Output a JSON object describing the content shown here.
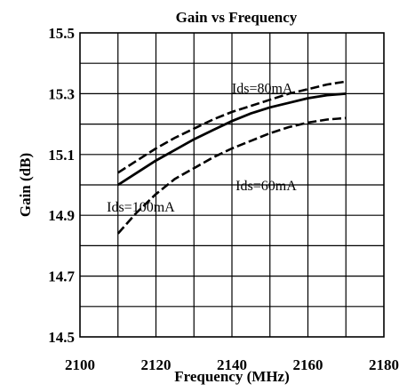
{
  "chart_data": {
    "type": "line",
    "title": "Gain vs Frequency",
    "xlabel": "Frequency (MHz)",
    "ylabel": "Gain (dB)",
    "xlim": [
      2100,
      2180
    ],
    "ylim": [
      14.5,
      15.5
    ],
    "x_ticks": [
      2100,
      2120,
      2140,
      2160,
      2180
    ],
    "y_ticks": [
      14.5,
      14.7,
      14.9,
      15.1,
      15.3,
      15.5
    ],
    "x_tick_labels": [
      "2100",
      "2120",
      "2140",
      "2160",
      "2180"
    ],
    "y_tick_labels": [
      "14.5",
      "14.7",
      "14.9",
      "15.1",
      "15.3",
      "15.5"
    ],
    "grid": true,
    "legend": "none",
    "series": [
      {
        "name": "Ids=80mA",
        "style": "dashed",
        "color": "#000000",
        "x": [
          2110,
          2115,
          2120,
          2125,
          2130,
          2135,
          2140,
          2145,
          2150,
          2155,
          2160,
          2165,
          2170
        ],
        "y": [
          15.04,
          15.08,
          15.12,
          15.155,
          15.185,
          15.215,
          15.24,
          15.26,
          15.28,
          15.3,
          15.315,
          15.33,
          15.34
        ]
      },
      {
        "name": "",
        "style": "solid",
        "color": "#000000",
        "x": [
          2110,
          2115,
          2120,
          2125,
          2130,
          2135,
          2140,
          2145,
          2150,
          2155,
          2160,
          2165,
          2170
        ],
        "y": [
          15.0,
          15.04,
          15.08,
          15.115,
          15.15,
          15.18,
          15.21,
          15.235,
          15.255,
          15.27,
          15.285,
          15.295,
          15.3
        ]
      },
      {
        "name": "Ids=60mA",
        "style": "dashed",
        "color": "#000000",
        "x": [
          2110,
          2115,
          2120,
          2125,
          2130,
          2135,
          2140,
          2145,
          2150,
          2155,
          2160,
          2165,
          2170
        ],
        "y": [
          14.84,
          14.91,
          14.97,
          15.02,
          15.055,
          15.09,
          15.12,
          15.145,
          15.17,
          15.19,
          15.205,
          15.215,
          15.22
        ]
      }
    ],
    "annotations": [
      {
        "text": "Ids=80mA",
        "x": 2148,
        "y": 15.32,
        "anchor": "middle"
      },
      {
        "text": "Ids=60mA",
        "x": 2149,
        "y": 15.0,
        "anchor": "middle"
      },
      {
        "text": "Ids=100mA",
        "x": 2116,
        "y": 14.93,
        "anchor": "middle"
      }
    ]
  }
}
